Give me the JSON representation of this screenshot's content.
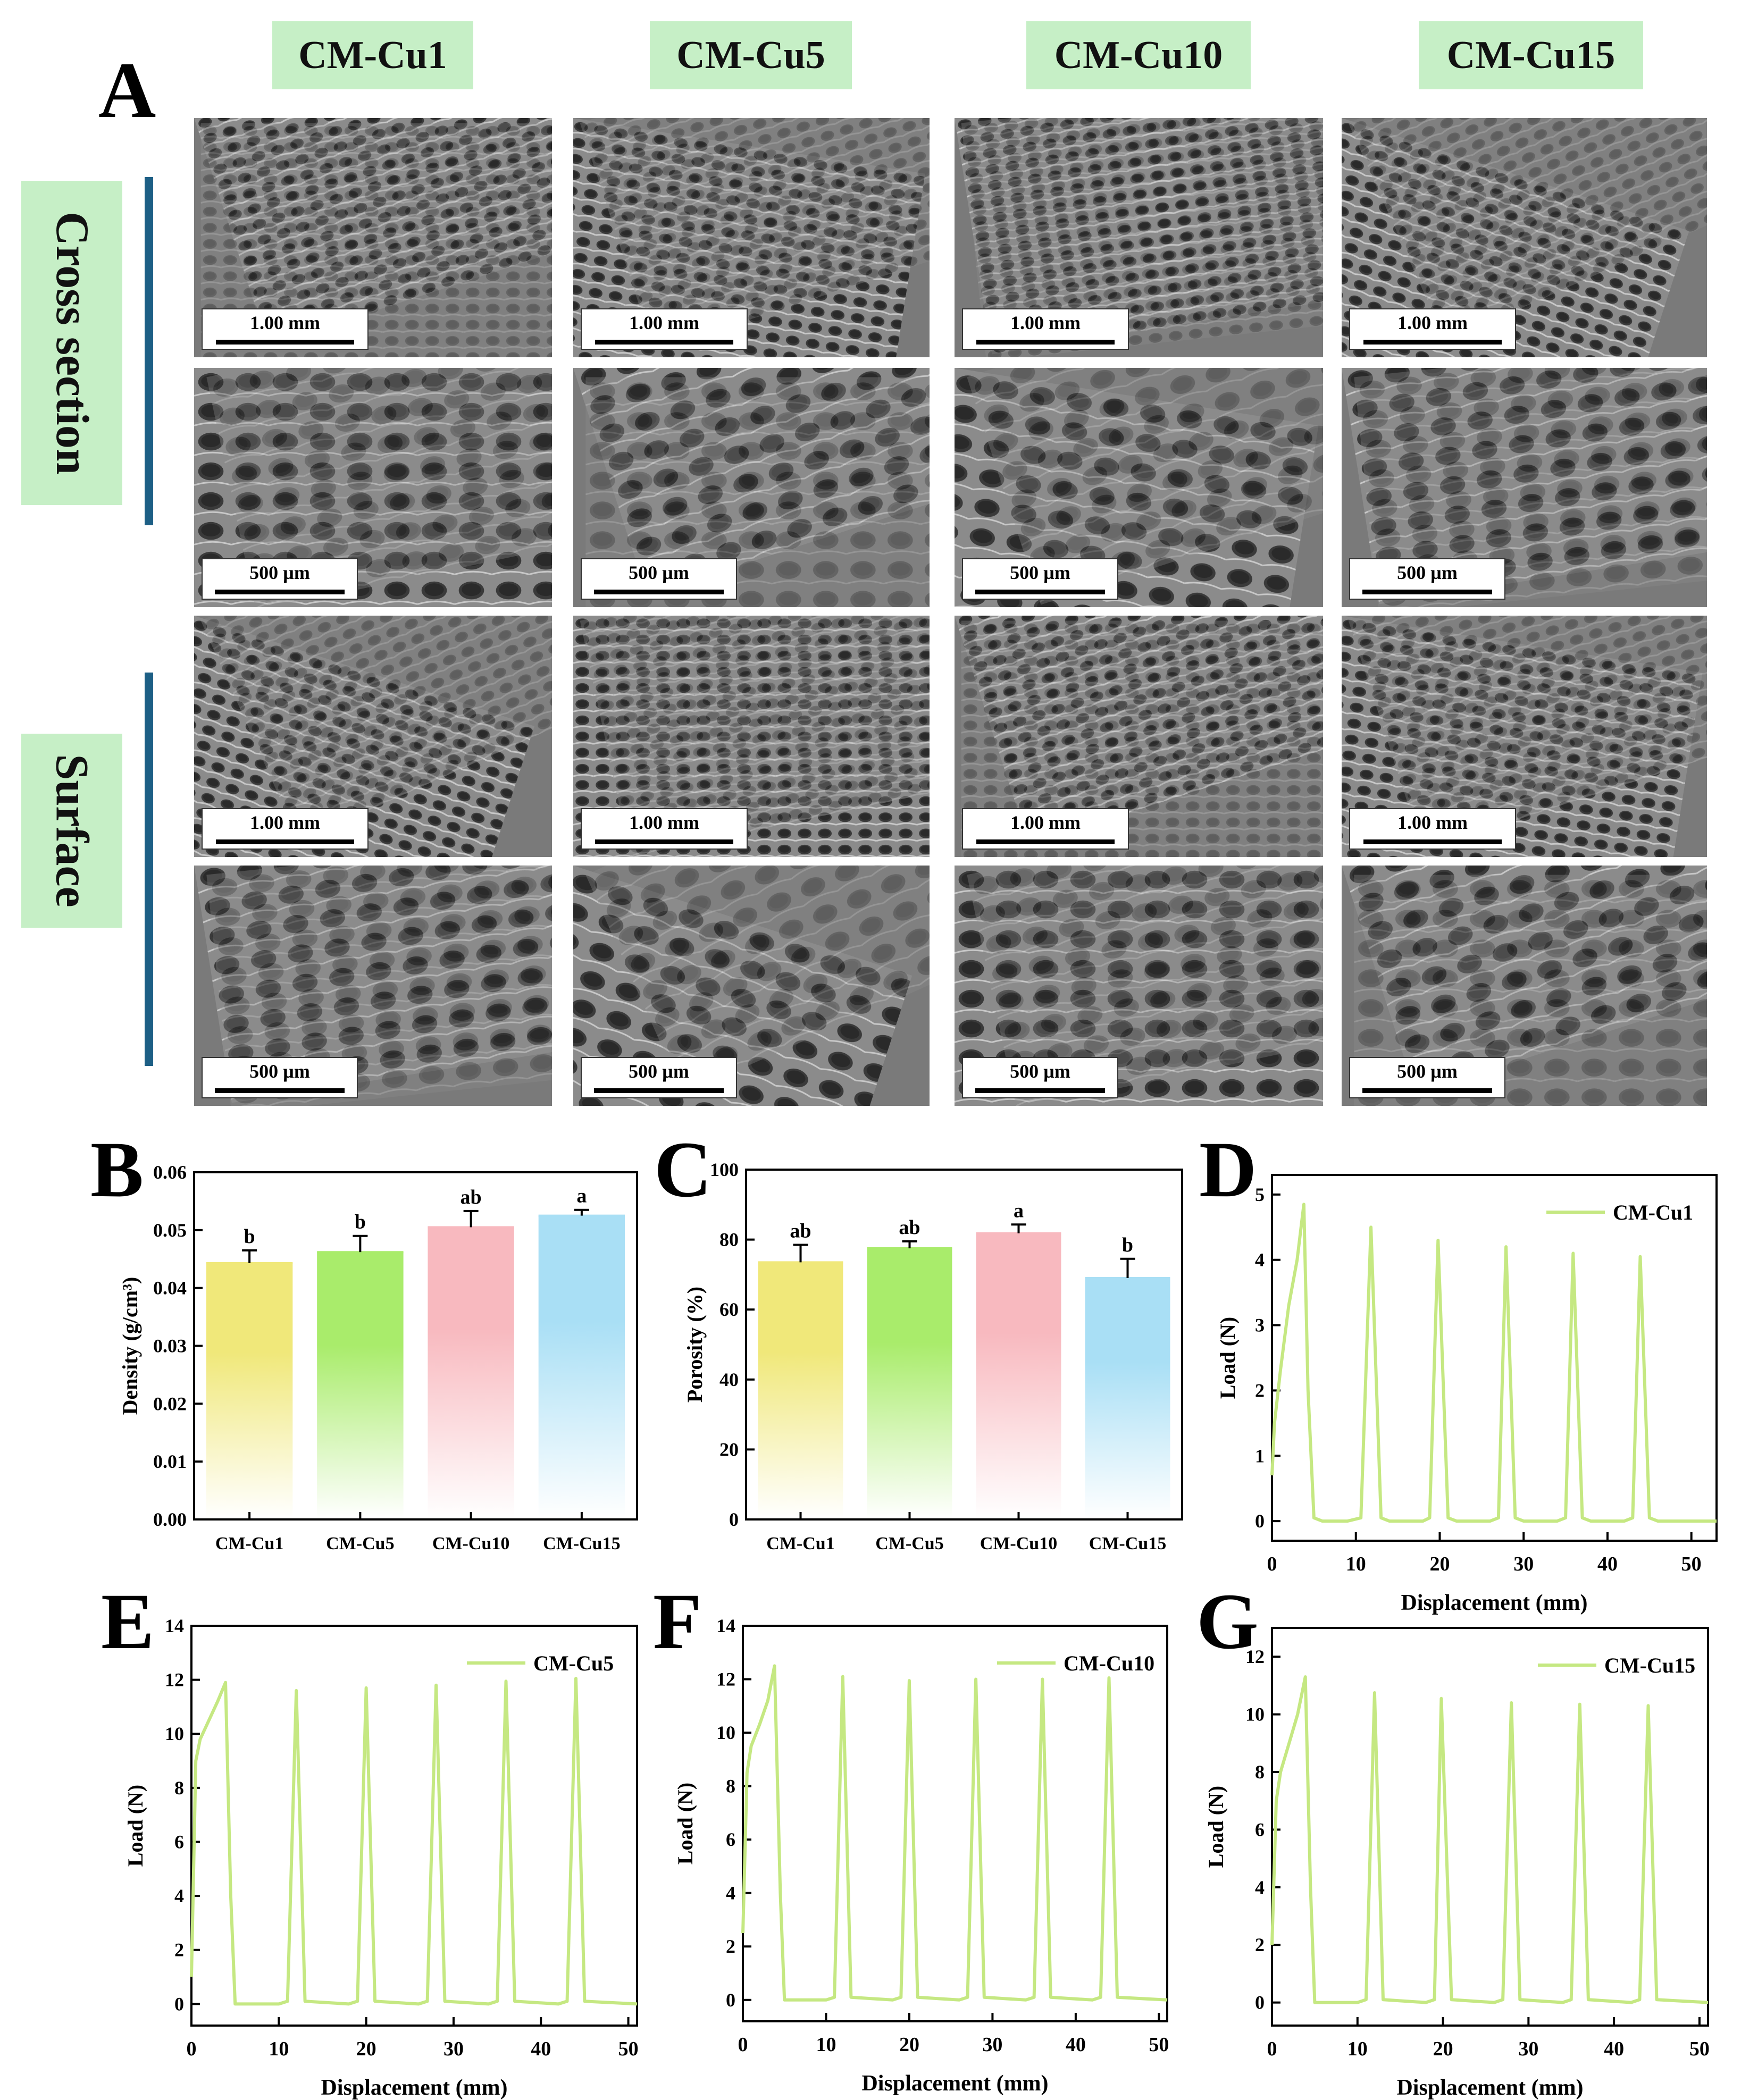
{
  "panel_A": {
    "letter": "A",
    "columns": [
      "CM-Cu1",
      "CM-Cu5",
      "CM-Cu10",
      "CM-Cu15"
    ],
    "row_groups": [
      "Cross section",
      "Surface"
    ],
    "scale_bars": [
      [
        "1.00 mm",
        "1.00 mm",
        "1.00 mm",
        "1.00 mm"
      ],
      [
        "500 µm",
        "500 µm",
        "500 µm",
        "500 µm"
      ],
      [
        "1.00 mm",
        "1.00 mm",
        "1.00 mm",
        "1.00 mm"
      ],
      [
        "500 µm",
        "500 µm",
        "500 µm",
        "500 µm"
      ]
    ]
  },
  "colors": {
    "label_bg": "#c6efc6",
    "side_bar": "#1d5f85",
    "curve": "#c5e882",
    "bar_yellow": "#f0e87a",
    "bar_green": "#a9ec6b",
    "bar_pink": "#f8b9bf",
    "bar_blue": "#a9dff5"
  },
  "chart_data": [
    {
      "id": "B",
      "letter": "B",
      "type": "bar",
      "categories": [
        "CM-Cu1",
        "CM-Cu5",
        "CM-Cu10",
        "CM-Cu15"
      ],
      "values": [
        0.0443,
        0.0462,
        0.0505,
        0.0525
      ],
      "errors": [
        0.0022,
        0.0028,
        0.0028,
        0.001
      ],
      "sig_letters": [
        "b",
        "b",
        "ab",
        "a"
      ],
      "bar_colors": [
        "#f0e87a",
        "#a9ec6b",
        "#f8b9bf",
        "#a9dff5"
      ],
      "xlabel": "",
      "ylabel": "Density (g/cm³)",
      "ylim": [
        0,
        0.06
      ],
      "yticks": [
        "0.00",
        "0.01",
        "0.02",
        "0.03",
        "0.04",
        "0.05",
        "0.06"
      ]
    },
    {
      "id": "C",
      "letter": "C",
      "type": "bar",
      "categories": [
        "CM-Cu1",
        "CM-Cu5",
        "CM-Cu10",
        "CM-Cu15"
      ],
      "values": [
        73.5,
        77.5,
        81.8,
        69.0
      ],
      "errors": [
        5.0,
        2.0,
        2.5,
        5.5
      ],
      "sig_letters": [
        "ab",
        "ab",
        "a",
        "b"
      ],
      "bar_colors": [
        "#f0e87a",
        "#a9ec6b",
        "#f8b9bf",
        "#a9dff5"
      ],
      "xlabel": "",
      "ylabel": "Porosity (%)",
      "ylim": [
        0,
        100
      ],
      "yticks": [
        "0",
        "20",
        "40",
        "60",
        "80",
        "100"
      ]
    },
    {
      "id": "D",
      "letter": "D",
      "type": "line",
      "series": [
        {
          "name": "CM-Cu1",
          "x": [
            0,
            0.3,
            1,
            2,
            3,
            3.8,
            4.3,
            5,
            6,
            9,
            10.6,
            11.8,
            13,
            14,
            18,
            18.8,
            19.8,
            21,
            22,
            26,
            27,
            27.9,
            29,
            30,
            34,
            35,
            35.9,
            37,
            38,
            42,
            43,
            43.9,
            45,
            46,
            53
          ],
          "y": [
            0.7,
            1.5,
            2.3,
            3.3,
            4.0,
            4.85,
            2.0,
            0.05,
            0.0,
            0.0,
            0.05,
            4.5,
            0.05,
            0.0,
            0.0,
            0.05,
            4.3,
            0.05,
            0.0,
            0.0,
            0.05,
            4.2,
            0.05,
            0.0,
            0.0,
            0.05,
            4.1,
            0.05,
            0.0,
            0.0,
            0.05,
            4.05,
            0.05,
            0.0,
            0.0
          ]
        }
      ],
      "xlabel": "Displacement (mm)",
      "ylabel": "Load (N)",
      "xlim": [
        0,
        53
      ],
      "ylim": [
        -0.3,
        5.3
      ],
      "xticks": [
        0,
        10,
        20,
        30,
        40,
        50
      ],
      "yticks": [
        0,
        1,
        2,
        3,
        4,
        5
      ],
      "legend": "top-right"
    },
    {
      "id": "E",
      "letter": "E",
      "type": "line",
      "series": [
        {
          "name": "CM-Cu5",
          "x": [
            0,
            0.5,
            1,
            2,
            3,
            3.9,
            4.5,
            5,
            10,
            11,
            12,
            13,
            18,
            19,
            20,
            21,
            26,
            27,
            28,
            29,
            34,
            35,
            36,
            37,
            42,
            43,
            44,
            45,
            51
          ],
          "y": [
            1,
            9,
            9.8,
            10.5,
            11.2,
            11.9,
            4,
            0,
            0,
            0.1,
            11.6,
            0.1,
            0,
            0.1,
            11.7,
            0.1,
            0,
            0.1,
            11.8,
            0.1,
            0,
            0.1,
            11.95,
            0.1,
            0,
            0.1,
            12.05,
            0.1,
            0
          ]
        }
      ],
      "xlabel": "Displacement (mm)",
      "ylabel": "Load (N)",
      "xlim": [
        0,
        51
      ],
      "ylim": [
        -0.8,
        14
      ],
      "xticks": [
        0,
        10,
        20,
        30,
        40,
        50
      ],
      "yticks": [
        0,
        2,
        4,
        6,
        8,
        10,
        12,
        14
      ],
      "legend": "top-right"
    },
    {
      "id": "F",
      "letter": "F",
      "type": "line",
      "series": [
        {
          "name": "CM-Cu10",
          "x": [
            0,
            0.5,
            1,
            2,
            3,
            3.8,
            4.5,
            5,
            10,
            11,
            12,
            13,
            18,
            19,
            20,
            21,
            26,
            27,
            28,
            29,
            34,
            35,
            36,
            37,
            42,
            43,
            44,
            45,
            51
          ],
          "y": [
            2.5,
            8.5,
            9.5,
            10.3,
            11.2,
            12.5,
            4,
            0,
            0,
            0.1,
            12.1,
            0.1,
            0,
            0.1,
            11.95,
            0.1,
            0,
            0.1,
            12.0,
            0.1,
            0,
            0.1,
            12.0,
            0.1,
            0,
            0.1,
            12.05,
            0.1,
            0
          ]
        }
      ],
      "xlabel": "Displacement (mm)",
      "ylabel": "Load (N)",
      "xlim": [
        0,
        51
      ],
      "ylim": [
        -0.8,
        14
      ],
      "xticks": [
        0,
        10,
        20,
        30,
        40,
        50
      ],
      "yticks": [
        0,
        2,
        4,
        6,
        8,
        10,
        12,
        14
      ],
      "legend": "top-right"
    },
    {
      "id": "G",
      "letter": "G",
      "type": "line",
      "series": [
        {
          "name": "CM-Cu15",
          "x": [
            0,
            0.5,
            1,
            2,
            3,
            3.9,
            4.5,
            5,
            10,
            11,
            12,
            13,
            18,
            19,
            19.8,
            21,
            26,
            27,
            28,
            29,
            34,
            35,
            36,
            37,
            42,
            43,
            44,
            45,
            51
          ],
          "y": [
            2,
            7,
            8,
            9,
            10,
            11.3,
            4,
            0,
            0,
            0.1,
            10.75,
            0.1,
            0,
            0.1,
            10.55,
            0.1,
            0,
            0.1,
            10.4,
            0.1,
            0,
            0.1,
            10.35,
            0.1,
            0,
            0.1,
            10.3,
            0.1,
            0
          ]
        }
      ],
      "xlabel": "Displacement (mm)",
      "ylabel": "Load (N)",
      "xlim": [
        0,
        51
      ],
      "ylim": [
        -0.8,
        13
      ],
      "xticks": [
        0,
        10,
        20,
        30,
        40,
        50
      ],
      "yticks": [
        0,
        2,
        4,
        6,
        8,
        10,
        12
      ],
      "legend": "top-right"
    }
  ]
}
